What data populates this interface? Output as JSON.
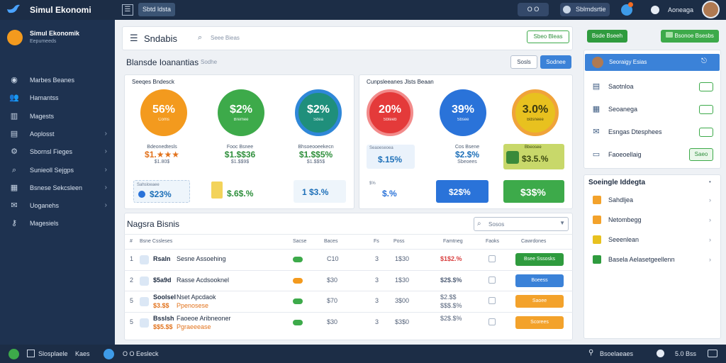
{
  "app": {
    "title": "Simul Ekonomi",
    "tab": "Sbtd ldsta"
  },
  "topbar": {
    "pill1": "O O",
    "pill2": "Sblmdsrtie",
    "user_label": "Aoneaga",
    "logo_icon": "bird-icon"
  },
  "sidebar": {
    "brand_title": "Simul Ekonomik",
    "brand_sub": "Eepumeeds",
    "items": [
      {
        "label": "Marbes Beanes",
        "icon": "globe-icon",
        "chevron": false
      },
      {
        "label": "Hamantss",
        "icon": "people-icon",
        "chevron": false
      },
      {
        "label": "Magests",
        "icon": "chart-icon",
        "chevron": false
      },
      {
        "label": "Aoplosst",
        "icon": "grid-icon",
        "chevron": true
      },
      {
        "label": "Sbornsl Fieges",
        "icon": "gear-icon",
        "chevron": true
      },
      {
        "label": "Sunieoll Sejgps",
        "icon": "search-icon",
        "chevron": true
      },
      {
        "label": "Bsnese Sekcsleen",
        "icon": "doc-icon",
        "chevron": true
      },
      {
        "label": "Uoganehs",
        "icon": "chat-icon",
        "chevron": true
      },
      {
        "label": "Magesiels",
        "icon": "key-icon",
        "chevron": false
      }
    ]
  },
  "header": {
    "title": "Sndabis",
    "search_placeholder": "Seee Bieas",
    "action_label": "Sbeo Bleas"
  },
  "section": {
    "title": "Blansde Ioanantias",
    "subtitle": "Sodhe",
    "btn_outline": "Sosls",
    "btn_primary": "Sodnee"
  },
  "panel_left": {
    "title": "Seeqes Bndesck",
    "gauges": [
      {
        "value": "56%",
        "sub": "Coms",
        "color": "#f39a1e"
      },
      {
        "value": "$2%",
        "sub": "Bremee",
        "color": "#3daa4a"
      },
      {
        "value": "$2%",
        "sub": "Sdea",
        "color": "#1f8f7b"
      }
    ],
    "minis": [
      {
        "label": "Bdeonedtesls",
        "value": "$1.★★★",
        "sub": "$1.80$",
        "color": "#e2731d"
      },
      {
        "label": "Fooc Bsnee",
        "value": "$1.$$36",
        "sub": "$1.$$9$",
        "color": "#2f8f3c"
      },
      {
        "label": "Bhsoeooeekecn",
        "value": "$1.$$5%",
        "sub": "$1.$$5$",
        "color": "#2f8f3c"
      }
    ],
    "stats": [
      {
        "label": "Sahsloeaee",
        "value": "$23%"
      },
      {
        "label": "",
        "value": "$.6$.%"
      },
      {
        "label": "",
        "value": "1 $3.%"
      }
    ]
  },
  "panel_right": {
    "title": "Cunpsleeanes Jlsts Beaan",
    "gauges": [
      {
        "value": "20%",
        "sub": "Sbteeb",
        "color": "#e43a3a"
      },
      {
        "value": "39%",
        "sub": "Sbsee",
        "color": "#2a73d9"
      },
      {
        "value": "3.0%",
        "sub": "Bdsneee",
        "color": "#e8c11f"
      }
    ],
    "stat_a": {
      "label": "Seaoeseoea",
      "value": "$.15%"
    },
    "stat_b": {
      "label": "Cos Bsene",
      "value": "$2.$%",
      "sub": "Sbeoees"
    },
    "stat_c": {
      "label": "Bbeosee",
      "value": "$3.5.%"
    },
    "stat_d": {
      "label": "$%",
      "value": "$.%"
    },
    "stat_e": {
      "value": "$2$%"
    },
    "stat_f": {
      "value": "$3$%"
    }
  },
  "table": {
    "title": "Nagsra Bisnis",
    "headers": [
      "Sacse",
      "Baces",
      "Fs",
      "Poss",
      "Famtneg",
      "Faoks",
      "Cawrdones"
    ],
    "header_first": "Bsne Cssleses",
    "filter_placeholder": "Sosos",
    "rows": [
      {
        "num": "1",
        "name": "Rsaln",
        "desc": "Sesne Assoehing",
        "a": "C10",
        "b": "3",
        "c": "1$30",
        "d": "$1$2.%",
        "action": "Bsee Sssosks",
        "action_color": "#2f9b3e",
        "d_color": "#d94040"
      },
      {
        "num": "2",
        "name": "$5a9d",
        "desc": "Rasse Acdsooknel",
        "a": "$30",
        "b": "3",
        "c": "1$30",
        "d": "$2$.$%",
        "action": "Boeess",
        "action_color": "#3b82d8",
        "d_color": "#55637a"
      },
      {
        "num": "5",
        "name": "Soolsel",
        "desc": "Nset Apcdaok",
        "name2": "$3.$$",
        "desc2": "Ppenosese",
        "a": "$70",
        "b": "3",
        "c": "3$00",
        "d": "$2.$$",
        "d2": "$$$.$%",
        "action": "Saoee",
        "action_color": "#f3a22b",
        "d_color": "#55637a"
      },
      {
        "num": "5",
        "name": "Bsslsh",
        "desc": "Faoeoe Aribneoner",
        "name2": "$$5.$$",
        "desc2": "Pgraeeease",
        "a": "$30",
        "b": "3",
        "c": "$3$0",
        "d": "$2$.$%",
        "action": "Scorees",
        "action_color": "#f3a22b",
        "d_color": "#55637a"
      }
    ]
  },
  "right_panel": {
    "top_btn1": "Bsde Bseeh",
    "top_btn2": "Bsonoe Bsesbs",
    "user_name": "Seoraigy Esias",
    "items": [
      {
        "label": "Saotnloa",
        "icon": "grid-icon"
      },
      {
        "label": "Seoanega",
        "icon": "doc-icon"
      },
      {
        "label": "Esngas Dtesphees",
        "icon": "mail-icon"
      },
      {
        "label": "Faoeoellaig",
        "icon": "folder-icon",
        "btn": "Saeo"
      }
    ],
    "list_title": "Soeingle Iddegta",
    "list": [
      {
        "label": "Sahdljea",
        "color": "#f3a22b"
      },
      {
        "label": "Netombegg",
        "color": "#f3a22b"
      },
      {
        "label": "Seeenlean",
        "color": "#e8c11f"
      },
      {
        "label": "Basela Aelasetgeellenn",
        "color": "#2f9b3e"
      }
    ]
  },
  "bottombar": {
    "left1": "Slosplaele",
    "left2": "Kaes",
    "left3": "O O Eesleck",
    "right1": "Bsoelaeaes",
    "right2": "5.0 Bss"
  }
}
